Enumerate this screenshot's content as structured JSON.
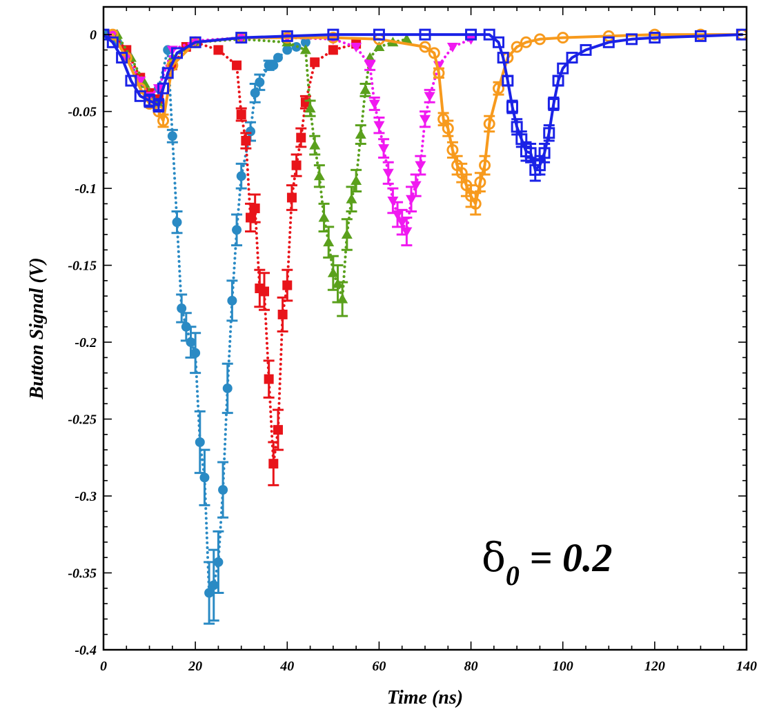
{
  "chart_data": {
    "type": "scatter",
    "title": "",
    "xlabel": "Time (ns)",
    "ylabel": "Button Signal (V)",
    "xlim": [
      0,
      140
    ],
    "ylim": [
      -0.4,
      0.018
    ],
    "x_ticks": [
      0,
      20,
      40,
      60,
      80,
      100,
      120,
      140
    ],
    "x_tick_labels": [
      "0",
      "20",
      "40",
      "60",
      "80",
      "100",
      "120",
      "140"
    ],
    "y_ticks": [
      0,
      -0.05,
      -0.1,
      -0.15,
      -0.2,
      -0.25,
      -0.3,
      -0.35,
      -0.4
    ],
    "y_tick_labels": [
      "0",
      "-0.05",
      "-0.1",
      "-0.15",
      "-0.2",
      "-0.25",
      "-0.3",
      "-0.35",
      "-0.4"
    ],
    "grid": false,
    "annotation": {
      "delta": "δ",
      "subscript": "0",
      "text": " = 0.2"
    },
    "series": [
      {
        "color": "#2a8ac4",
        "marker": "circle-filled",
        "line": "dotted",
        "x": [
          1,
          3,
          5,
          8,
          10,
          12,
          14,
          15,
          16,
          17,
          18,
          19,
          20,
          21,
          22,
          23,
          24,
          25,
          26,
          27,
          28,
          29,
          30,
          32,
          33,
          34,
          36,
          37,
          38,
          40,
          42,
          44
        ],
        "y": [
          0,
          -0.005,
          -0.015,
          -0.03,
          -0.04,
          -0.035,
          -0.01,
          -0.066,
          -0.122,
          -0.178,
          -0.19,
          -0.2,
          -0.207,
          -0.265,
          -0.288,
          -0.363,
          -0.358,
          -0.343,
          -0.296,
          -0.23,
          -0.173,
          -0.127,
          -0.092,
          -0.063,
          -0.038,
          -0.031,
          -0.02,
          -0.02,
          -0.015,
          -0.01,
          -0.008,
          -0.005
        ],
        "err": [
          0,
          0,
          0,
          0,
          0,
          0,
          0,
          0.004,
          0.007,
          0.009,
          0.009,
          0.01,
          0.013,
          0.02,
          0.018,
          0.02,
          0.023,
          0.02,
          0.018,
          0.016,
          0.013,
          0.01,
          0.008,
          0.006,
          0.006,
          0.005,
          0.003,
          0,
          0,
          0,
          0,
          0
        ]
      },
      {
        "color": "#e8141a",
        "marker": "square-filled",
        "line": "dotted",
        "x": [
          2,
          5,
          8,
          10,
          12,
          15,
          18,
          20,
          25,
          29,
          30,
          31,
          32,
          33,
          34,
          35,
          36,
          37,
          38,
          39,
          40,
          41,
          42,
          43,
          44,
          46,
          50,
          55
        ],
        "y": [
          0,
          -0.01,
          -0.028,
          -0.038,
          -0.042,
          -0.02,
          -0.008,
          -0.005,
          -0.01,
          -0.02,
          -0.052,
          -0.069,
          -0.119,
          -0.113,
          -0.165,
          -0.167,
          -0.224,
          -0.279,
          -0.257,
          -0.182,
          -0.163,
          -0.106,
          -0.085,
          -0.067,
          -0.044,
          -0.018,
          -0.01,
          -0.006
        ],
        "err": [
          0,
          0,
          0,
          0,
          0,
          0,
          0,
          0,
          0,
          0,
          0.004,
          0.005,
          0.009,
          0.009,
          0.012,
          0.012,
          0.012,
          0.014,
          0.013,
          0.011,
          0.01,
          0.008,
          0.007,
          0.006,
          0.004,
          0,
          0,
          0
        ]
      },
      {
        "color": "#5aa01c",
        "marker": "triangle-up",
        "line": "dotted",
        "x": [
          3,
          6,
          9,
          12,
          15,
          20,
          30,
          40,
          44,
          45,
          46,
          47,
          48,
          49,
          50,
          51,
          52,
          53,
          54,
          55,
          56,
          57,
          58,
          60,
          63,
          66
        ],
        "y": [
          0,
          -0.015,
          -0.032,
          -0.045,
          -0.015,
          -0.005,
          -0.003,
          -0.005,
          -0.01,
          -0.048,
          -0.072,
          -0.092,
          -0.119,
          -0.135,
          -0.155,
          -0.162,
          -0.172,
          -0.13,
          -0.107,
          -0.095,
          -0.065,
          -0.036,
          -0.015,
          -0.008,
          -0.005,
          -0.003
        ],
        "err": [
          0,
          0,
          0,
          0,
          0,
          0,
          0,
          0,
          0,
          0.005,
          0.006,
          0.007,
          0.009,
          0.01,
          0.011,
          0.012,
          0.011,
          0.01,
          0.008,
          0.007,
          0.006,
          0.004,
          0,
          0,
          0,
          0
        ]
      },
      {
        "color": "#f019f0",
        "marker": "triangle-down",
        "line": "dotted",
        "x": [
          2,
          5,
          8,
          10,
          12,
          15,
          20,
          30,
          40,
          50,
          55,
          58,
          59,
          60,
          61,
          62,
          63,
          64,
          65,
          66,
          67,
          68,
          69,
          70,
          71,
          73,
          76,
          80
        ],
        "y": [
          0,
          -0.015,
          -0.03,
          -0.04,
          -0.035,
          -0.01,
          -0.004,
          -0.002,
          -0.002,
          -0.003,
          -0.008,
          -0.02,
          -0.045,
          -0.059,
          -0.074,
          -0.09,
          -0.108,
          -0.117,
          -0.122,
          -0.128,
          -0.107,
          -0.098,
          -0.085,
          -0.055,
          -0.04,
          -0.02,
          -0.008,
          -0.003
        ],
        "err": [
          0,
          0,
          0,
          0,
          0,
          0,
          0,
          0,
          0,
          0,
          0,
          0.003,
          0.004,
          0.005,
          0.006,
          0.007,
          0.008,
          0.008,
          0.008,
          0.009,
          0.008,
          0.007,
          0.006,
          0.005,
          0.004,
          0,
          0,
          0
        ]
      },
      {
        "color": "#f79a1d",
        "marker": "circle-open",
        "line": "solid",
        "x": [
          2,
          5,
          8,
          10,
          12,
          13,
          15,
          20,
          30,
          40,
          50,
          60,
          70,
          72,
          73,
          74,
          75,
          76,
          77,
          78,
          79,
          80,
          81,
          82,
          83,
          84,
          86,
          88,
          90,
          92,
          95,
          100,
          110,
          120,
          130,
          139
        ],
        "y": [
          0,
          -0.015,
          -0.035,
          -0.045,
          -0.05,
          -0.056,
          -0.02,
          -0.005,
          -0.002,
          -0.002,
          -0.002,
          -0.003,
          -0.008,
          -0.012,
          -0.025,
          -0.055,
          -0.061,
          -0.075,
          -0.085,
          -0.09,
          -0.098,
          -0.105,
          -0.11,
          -0.096,
          -0.085,
          -0.058,
          -0.035,
          -0.015,
          -0.008,
          -0.005,
          -0.003,
          -0.002,
          -0.001,
          0,
          0,
          0
        ],
        "err": [
          0,
          0,
          0,
          0,
          0,
          0.004,
          0,
          0,
          0,
          0,
          0,
          0,
          0,
          0,
          0.003,
          0.004,
          0.005,
          0.005,
          0.006,
          0.006,
          0.007,
          0.007,
          0.007,
          0.006,
          0.006,
          0.005,
          0.004,
          0,
          0,
          0,
          0,
          0,
          0,
          0,
          0,
          0
        ]
      },
      {
        "color": "#1a22e6",
        "marker": "square-open",
        "line": "solid",
        "x": [
          0,
          2,
          4,
          6,
          8,
          10,
          12,
          13,
          14,
          16,
          20,
          30,
          40,
          50,
          60,
          70,
          80,
          84,
          86,
          87,
          88,
          89,
          90,
          91,
          92,
          93,
          94,
          95,
          96,
          97,
          98,
          99,
          100,
          102,
          105,
          110,
          115,
          120,
          130,
          139
        ],
        "y": [
          0,
          -0.005,
          -0.015,
          -0.03,
          -0.04,
          -0.043,
          -0.046,
          -0.035,
          -0.025,
          -0.012,
          -0.005,
          -0.002,
          -0.001,
          0,
          0,
          0,
          0,
          0,
          -0.005,
          -0.015,
          -0.03,
          -0.047,
          -0.06,
          -0.068,
          -0.076,
          -0.077,
          -0.088,
          -0.085,
          -0.077,
          -0.064,
          -0.045,
          -0.03,
          -0.022,
          -0.015,
          -0.01,
          -0.005,
          -0.003,
          -0.002,
          -0.001,
          0
        ],
        "err": [
          0,
          0,
          0,
          0,
          0,
          0.004,
          0.004,
          0,
          0,
          0,
          0,
          0,
          0,
          0,
          0,
          0,
          0,
          0,
          0,
          0,
          0.003,
          0.004,
          0.005,
          0.005,
          0.006,
          0.006,
          0.007,
          0.006,
          0.006,
          0.005,
          0.004,
          0.003,
          0,
          0,
          0,
          0,
          0,
          0,
          0,
          0
        ]
      }
    ]
  }
}
